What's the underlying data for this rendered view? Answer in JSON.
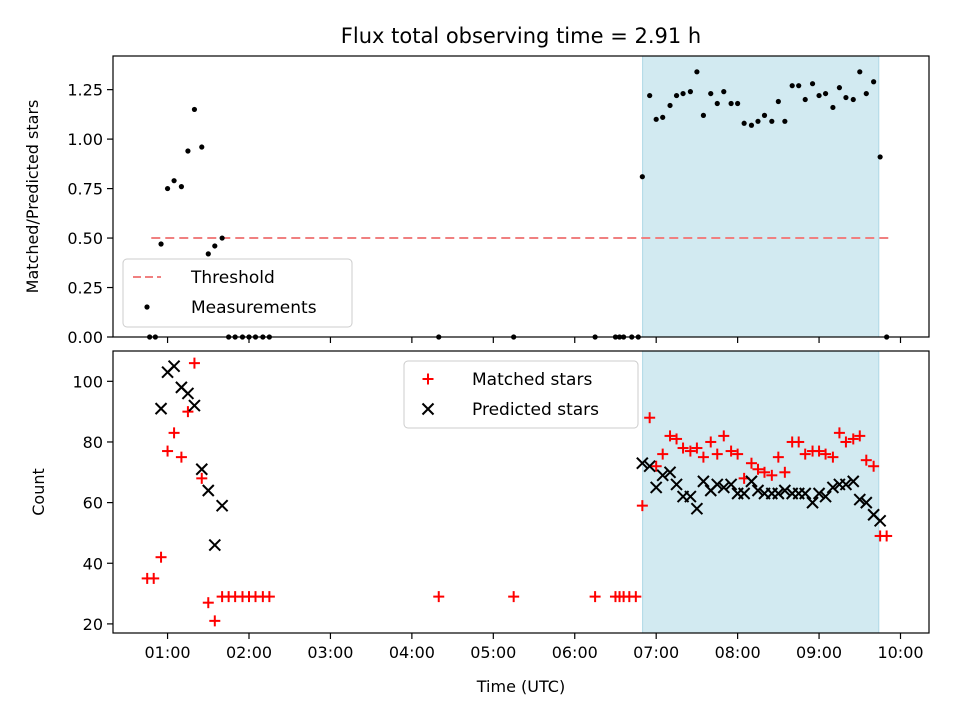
{
  "chart_data": {
    "title": "Flux total observing time = 2.91 h",
    "xlabel": "Time (UTC)",
    "x_ticks": [
      "01:00",
      "02:00",
      "03:00",
      "04:00",
      "05:00",
      "06:00",
      "07:00",
      "08:00",
      "09:00",
      "10:00"
    ],
    "x_range_hours": [
      0.33,
      10.35
    ],
    "shaded_region": {
      "start": "06:50",
      "end": "09:44",
      "color": "#add8e6"
    },
    "panels": [
      {
        "type": "scatter",
        "ylabel": "Matched/Predicted stars",
        "ylim": [
          0,
          1.42
        ],
        "y_ticks": [
          "0.00",
          "0.25",
          "0.50",
          "0.75",
          "1.00",
          "1.25"
        ],
        "y_tick_values": [
          0,
          0.25,
          0.5,
          0.75,
          1.0,
          1.25
        ],
        "legend_position": "lower-left",
        "series": [
          {
            "name": "Threshold",
            "kind": "dashed-line",
            "color": "#f08080",
            "x": [
              0.8,
              9.85
            ],
            "y": [
              0.5,
              0.5
            ]
          },
          {
            "name": "Measurements",
            "kind": "dot",
            "color": "#000000",
            "points": [
              [
                0.78,
                0
              ],
              [
                0.85,
                0
              ],
              [
                0.92,
                0.47
              ],
              [
                1.0,
                0.75
              ],
              [
                1.08,
                0.79
              ],
              [
                1.17,
                0.76
              ],
              [
                1.25,
                0.94
              ],
              [
                1.33,
                1.15
              ],
              [
                1.42,
                0.96
              ],
              [
                1.5,
                0.42
              ],
              [
                1.58,
                0.46
              ],
              [
                1.67,
                0.5
              ],
              [
                1.75,
                0
              ],
              [
                1.83,
                0
              ],
              [
                1.92,
                0
              ],
              [
                2.0,
                0
              ],
              [
                2.08,
                0
              ],
              [
                2.17,
                0
              ],
              [
                2.25,
                0
              ],
              [
                4.33,
                0
              ],
              [
                5.25,
                0
              ],
              [
                6.25,
                0
              ],
              [
                6.5,
                0
              ],
              [
                6.55,
                0
              ],
              [
                6.6,
                0
              ],
              [
                6.7,
                0
              ],
              [
                6.78,
                0
              ],
              [
                6.83,
                0.81
              ],
              [
                6.92,
                1.22
              ],
              [
                7.0,
                1.1
              ],
              [
                7.08,
                1.11
              ],
              [
                7.17,
                1.17
              ],
              [
                7.25,
                1.22
              ],
              [
                7.33,
                1.23
              ],
              [
                7.42,
                1.24
              ],
              [
                7.5,
                1.34
              ],
              [
                7.58,
                1.12
              ],
              [
                7.67,
                1.23
              ],
              [
                7.75,
                1.18
              ],
              [
                7.83,
                1.24
              ],
              [
                7.92,
                1.18
              ],
              [
                8.0,
                1.18
              ],
              [
                8.08,
                1.08
              ],
              [
                8.17,
                1.07
              ],
              [
                8.25,
                1.09
              ],
              [
                8.33,
                1.12
              ],
              [
                8.42,
                1.09
              ],
              [
                8.5,
                1.19
              ],
              [
                8.58,
                1.09
              ],
              [
                8.67,
                1.27
              ],
              [
                8.75,
                1.27
              ],
              [
                8.83,
                1.2
              ],
              [
                8.92,
                1.28
              ],
              [
                9.0,
                1.22
              ],
              [
                9.08,
                1.23
              ],
              [
                9.17,
                1.16
              ],
              [
                9.25,
                1.26
              ],
              [
                9.33,
                1.21
              ],
              [
                9.42,
                1.2
              ],
              [
                9.5,
                1.34
              ],
              [
                9.58,
                1.23
              ],
              [
                9.67,
                1.29
              ],
              [
                9.75,
                0.91
              ],
              [
                9.83,
                0
              ]
            ]
          }
        ]
      },
      {
        "type": "scatter",
        "ylabel": "Count",
        "ylim": [
          17,
          110
        ],
        "y_ticks": [
          "20",
          "40",
          "60",
          "80",
          "100"
        ],
        "y_tick_values": [
          20,
          40,
          60,
          80,
          100
        ],
        "legend_position": "upper-center",
        "series": [
          {
            "name": "Matched stars",
            "kind": "plus",
            "color": "#ff0000",
            "points": [
              [
                0.75,
                35
              ],
              [
                0.83,
                35
              ],
              [
                0.92,
                42
              ],
              [
                1.0,
                77
              ],
              [
                1.08,
                83
              ],
              [
                1.17,
                75
              ],
              [
                1.25,
                90
              ],
              [
                1.33,
                106
              ],
              [
                1.42,
                68
              ],
              [
                1.5,
                27
              ],
              [
                1.58,
                21
              ],
              [
                1.67,
                29
              ],
              [
                1.75,
                29
              ],
              [
                1.83,
                29
              ],
              [
                1.92,
                29
              ],
              [
                2.0,
                29
              ],
              [
                2.08,
                29
              ],
              [
                2.17,
                29
              ],
              [
                2.25,
                29
              ],
              [
                4.33,
                29
              ],
              [
                5.25,
                29
              ],
              [
                6.25,
                29
              ],
              [
                6.5,
                29
              ],
              [
                6.55,
                29
              ],
              [
                6.6,
                29
              ],
              [
                6.67,
                29
              ],
              [
                6.75,
                29
              ],
              [
                6.83,
                59
              ],
              [
                6.92,
                88
              ],
              [
                7.0,
                72
              ],
              [
                7.08,
                76
              ],
              [
                7.17,
                82
              ],
              [
                7.25,
                81
              ],
              [
                7.33,
                78
              ],
              [
                7.42,
                77
              ],
              [
                7.5,
                78
              ],
              [
                7.58,
                75
              ],
              [
                7.67,
                80
              ],
              [
                7.75,
                76
              ],
              [
                7.83,
                82
              ],
              [
                7.92,
                77
              ],
              [
                8.0,
                76
              ],
              [
                8.08,
                68
              ],
              [
                8.17,
                73
              ],
              [
                8.25,
                71
              ],
              [
                8.33,
                70
              ],
              [
                8.42,
                69
              ],
              [
                8.5,
                75
              ],
              [
                8.58,
                70
              ],
              [
                8.67,
                80
              ],
              [
                8.75,
                80
              ],
              [
                8.83,
                76
              ],
              [
                8.92,
                77
              ],
              [
                9.0,
                77
              ],
              [
                9.08,
                76
              ],
              [
                9.17,
                75
              ],
              [
                9.25,
                83
              ],
              [
                9.33,
                80
              ],
              [
                9.42,
                81
              ],
              [
                9.5,
                82
              ],
              [
                9.58,
                74
              ],
              [
                9.67,
                72
              ],
              [
                9.75,
                49
              ],
              [
                9.83,
                49
              ]
            ]
          },
          {
            "name": "Predicted stars",
            "kind": "x",
            "color": "#000000",
            "points": [
              [
                0.92,
                91
              ],
              [
                1.0,
                103
              ],
              [
                1.08,
                105
              ],
              [
                1.17,
                98
              ],
              [
                1.25,
                96
              ],
              [
                1.33,
                92
              ],
              [
                1.42,
                71
              ],
              [
                1.5,
                64
              ],
              [
                1.58,
                46
              ],
              [
                1.67,
                59
              ],
              [
                6.83,
                73
              ],
              [
                6.92,
                72
              ],
              [
                7.0,
                65
              ],
              [
                7.08,
                69
              ],
              [
                7.17,
                70
              ],
              [
                7.25,
                66
              ],
              [
                7.33,
                62
              ],
              [
                7.42,
                62
              ],
              [
                7.5,
                58
              ],
              [
                7.58,
                67
              ],
              [
                7.67,
                64
              ],
              [
                7.75,
                66
              ],
              [
                7.83,
                65
              ],
              [
                7.92,
                66
              ],
              [
                8.0,
                63
              ],
              [
                8.08,
                63
              ],
              [
                8.17,
                67
              ],
              [
                8.25,
                64
              ],
              [
                8.33,
                63
              ],
              [
                8.42,
                63
              ],
              [
                8.5,
                63
              ],
              [
                8.58,
                64
              ],
              [
                8.67,
                63
              ],
              [
                8.75,
                63
              ],
              [
                8.83,
                63
              ],
              [
                8.92,
                60
              ],
              [
                9.0,
                63
              ],
              [
                9.08,
                62
              ],
              [
                9.17,
                65
              ],
              [
                9.25,
                66
              ],
              [
                9.33,
                66
              ],
              [
                9.42,
                67
              ],
              [
                9.5,
                61
              ],
              [
                9.58,
                60
              ],
              [
                9.67,
                56
              ],
              [
                9.75,
                54
              ]
            ]
          }
        ]
      }
    ]
  }
}
